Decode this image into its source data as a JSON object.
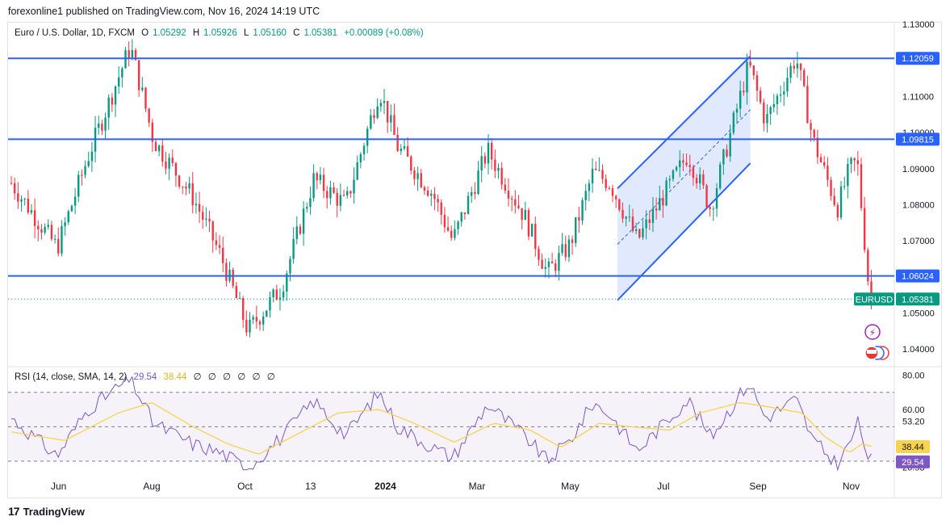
{
  "header": {
    "published": "forexonline1 published on TradingView.com, Nov 16, 2024 14:19 UTC"
  },
  "legend": {
    "symbol": "Euro / U.S. Dollar, 1D, FXCM",
    "o_label": "O",
    "o_value": "1.05292",
    "h_label": "H",
    "h_value": "1.05926",
    "l_label": "L",
    "l_value": "1.05160",
    "c_label": "C",
    "c_value": "1.05381",
    "change": "+0.00089 (+0.08%)"
  },
  "rsi_legend": {
    "name": "RSI (14, close, SMA, 14, 2)",
    "rsi_value": "29.54",
    "sma_value": "38.44",
    "empty_marks": [
      "∅",
      "∅",
      "∅",
      "∅",
      "∅",
      "∅"
    ]
  },
  "footer": {
    "brand": "TradingView"
  },
  "colors": {
    "up": "#089981",
    "down": "#f23645",
    "line": "#2962ff",
    "rsi": "#7e57c2",
    "rsi_sma": "#f7d34f",
    "channel_fill": "#2962ff"
  },
  "chart_data": {
    "type": "candlestick",
    "symbol": "EURUSD",
    "timeframe": "1D",
    "price_axis": {
      "ylim": [
        1.0355,
        1.1305
      ],
      "ticks": [
        "1.13000",
        "1.11000",
        "1.10000",
        "1.09000",
        "1.08000",
        "1.07000",
        "1.05000",
        "1.04000"
      ]
    },
    "time_axis": {
      "labels": [
        "Jun",
        "Aug",
        "Oct",
        "13",
        "2024",
        "Mar",
        "May",
        "Jul",
        "Sep",
        "Nov"
      ]
    },
    "horizontal_levels": [
      {
        "value": 1.12059,
        "label": "1.12059"
      },
      {
        "value": 1.09815,
        "label": "1.09815"
      },
      {
        "value": 1.06024,
        "label": "1.06024"
      }
    ],
    "last_price": {
      "symbol_label": "EURUSD",
      "value": 1.05381,
      "label": "1.05381"
    },
    "channel": {
      "upper": [
        [
          "2024-06-01",
          1.0845
        ],
        [
          "2024-08-27",
          1.1212
        ]
      ],
      "lower": [
        [
          "2024-06-01",
          1.0535
        ],
        [
          "2024-08-27",
          1.0915
        ]
      ]
    },
    "close_path": [
      [
        "2023-05-01",
        1.086
      ],
      [
        "2023-05-31",
        1.068
      ],
      [
        "2023-06-20",
        1.093
      ],
      [
        "2023-07-18",
        1.124
      ],
      [
        "2023-08-02",
        1.098
      ],
      [
        "2023-08-28",
        1.082
      ],
      [
        "2023-09-15",
        1.066
      ],
      [
        "2023-10-03",
        1.045
      ],
      [
        "2023-10-25",
        1.057
      ],
      [
        "2023-11-15",
        1.087
      ],
      [
        "2023-12-06",
        1.08
      ],
      [
        "2023-12-28",
        1.112
      ],
      [
        "2024-01-09",
        1.096
      ],
      [
        "2024-02-01",
        1.083
      ],
      [
        "2024-02-14",
        1.07
      ],
      [
        "2024-03-08",
        1.095
      ],
      [
        "2024-04-02",
        1.076
      ],
      [
        "2024-04-16",
        1.061
      ],
      [
        "2024-05-01",
        1.069
      ],
      [
        "2024-05-16",
        1.089
      ],
      [
        "2024-05-27",
        1.086
      ],
      [
        "2024-06-14",
        1.07
      ],
      [
        "2024-07-17",
        1.094
      ],
      [
        "2024-08-01",
        1.079
      ],
      [
        "2024-08-26",
        1.119
      ],
      [
        "2024-09-06",
        1.103
      ],
      [
        "2024-09-26",
        1.121
      ],
      [
        "2024-10-07",
        1.098
      ],
      [
        "2024-10-23",
        1.079
      ],
      [
        "2024-10-31",
        1.09
      ],
      [
        "2024-11-05",
        1.092
      ],
      [
        "2024-11-13",
        1.055
      ],
      [
        "2024-11-15",
        1.0538
      ]
    ],
    "rsi": {
      "name": "RSI (14, close, SMA, 14, 2)",
      "ylim": [
        22,
        83
      ],
      "ticks": [
        "80.00",
        "60.00",
        "53.20",
        "26.53"
      ],
      "bands": {
        "upper": 70,
        "middle": 50,
        "lower": 30
      },
      "last_rsi": 29.54,
      "last_sma": 38.44,
      "rsi_path": [
        [
          "2023-05-01",
          55
        ],
        [
          "2023-05-31",
          33
        ],
        [
          "2023-06-20",
          60
        ],
        [
          "2023-07-18",
          78
        ],
        [
          "2023-08-02",
          52
        ],
        [
          "2023-08-28",
          40
        ],
        [
          "2023-09-15",
          35
        ],
        [
          "2023-10-03",
          26
        ],
        [
          "2023-10-25",
          44
        ],
        [
          "2023-11-15",
          65
        ],
        [
          "2023-12-06",
          45
        ],
        [
          "2023-12-28",
          70
        ],
        [
          "2024-01-09",
          50
        ],
        [
          "2024-02-01",
          38
        ],
        [
          "2024-02-14",
          32
        ],
        [
          "2024-03-08",
          63
        ],
        [
          "2024-04-02",
          44
        ],
        [
          "2024-04-16",
          30
        ],
        [
          "2024-05-01",
          42
        ],
        [
          "2024-05-16",
          64
        ],
        [
          "2024-05-27",
          57
        ],
        [
          "2024-06-14",
          36
        ],
        [
          "2024-07-17",
          66
        ],
        [
          "2024-08-01",
          44
        ],
        [
          "2024-08-26",
          76
        ],
        [
          "2024-09-06",
          55
        ],
        [
          "2024-09-26",
          66
        ],
        [
          "2024-10-07",
          42
        ],
        [
          "2024-10-23",
          28
        ],
        [
          "2024-10-31",
          40
        ],
        [
          "2024-11-05",
          53
        ],
        [
          "2024-11-13",
          31
        ],
        [
          "2024-11-15",
          29.54
        ]
      ],
      "sma_path": [
        [
          "2023-05-01",
          47
        ],
        [
          "2023-06-05",
          42
        ],
        [
          "2023-07-10",
          58
        ],
        [
          "2023-08-01",
          64
        ],
        [
          "2023-08-28",
          50
        ],
        [
          "2023-09-20",
          40
        ],
        [
          "2023-10-10",
          34
        ],
        [
          "2023-11-05",
          46
        ],
        [
          "2023-12-01",
          58
        ],
        [
          "2023-12-28",
          60
        ],
        [
          "2024-01-20",
          52
        ],
        [
          "2024-02-15",
          41
        ],
        [
          "2024-03-12",
          52
        ],
        [
          "2024-04-05",
          48
        ],
        [
          "2024-04-25",
          38
        ],
        [
          "2024-05-20",
          52
        ],
        [
          "2024-06-10",
          50
        ],
        [
          "2024-07-05",
          48
        ],
        [
          "2024-07-25",
          58
        ],
        [
          "2024-08-20",
          64
        ],
        [
          "2024-09-05",
          62
        ],
        [
          "2024-09-30",
          58
        ],
        [
          "2024-10-15",
          44
        ],
        [
          "2024-10-31",
          35
        ],
        [
          "2024-11-08",
          40
        ],
        [
          "2024-11-15",
          38.44
        ]
      ]
    }
  }
}
